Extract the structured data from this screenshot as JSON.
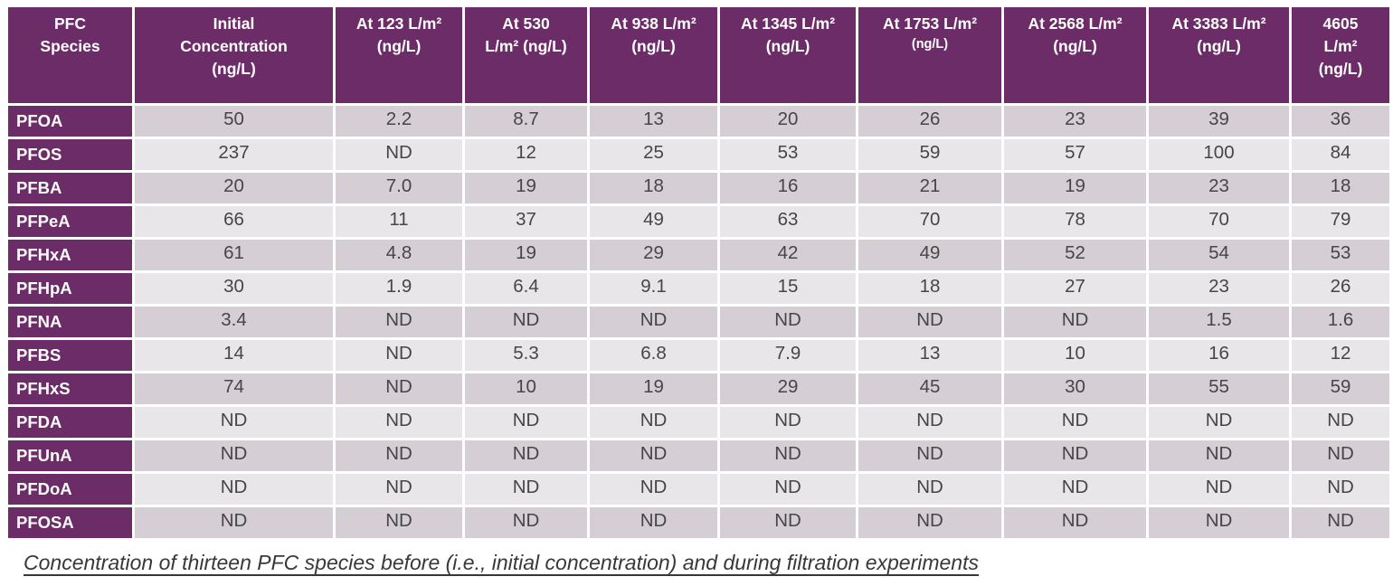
{
  "chart_data": {
    "type": "table",
    "caption": "Concentration of thirteen PFC species before (i.e., initial concentration) and during filtration experiments",
    "columns": [
      "PFC Species",
      "Initial Concentration (ng/L)",
      "At 123 L/m² (ng/L)",
      "At 530 L/m² (ng/L)",
      "At 938 L/m² (ng/L)",
      "At 1345 L/m² (ng/L)",
      "At 1753 L/m² (ng/L)",
      "At 2568 L/m² (ng/L)",
      "At 3383 L/m² (ng/L)",
      "4605 L/m² (ng/L)"
    ],
    "rows": [
      [
        "PFOA",
        "50",
        "2.2",
        "8.7",
        "13",
        "20",
        "26",
        "23",
        "39",
        "36"
      ],
      [
        "PFOS",
        "237",
        "ND",
        "12",
        "25",
        "53",
        "59",
        "57",
        "100",
        "84"
      ],
      [
        "PFBA",
        "20",
        "7.0",
        "19",
        "18",
        "16",
        "21",
        "19",
        "23",
        "18"
      ],
      [
        "PFPeA",
        "66",
        "11",
        "37",
        "49",
        "63",
        "70",
        "78",
        "70",
        "79"
      ],
      [
        "PFHxA",
        "61",
        "4.8",
        "19",
        "29",
        "42",
        "49",
        "52",
        "54",
        "53"
      ],
      [
        "PFHpA",
        "30",
        "1.9",
        "6.4",
        "9.1",
        "15",
        "18",
        "27",
        "23",
        "26"
      ],
      [
        "PFNA",
        "3.4",
        "ND",
        "ND",
        "ND",
        "ND",
        "ND",
        "ND",
        "1.5",
        "1.6"
      ],
      [
        "PFBS",
        "14",
        "ND",
        "5.3",
        "6.8",
        "7.9",
        "13",
        "10",
        "16",
        "12"
      ],
      [
        "PFHxS",
        "74",
        "ND",
        "10",
        "19",
        "29",
        "45",
        "30",
        "55",
        "59"
      ],
      [
        "PFDA",
        "ND",
        "ND",
        "ND",
        "ND",
        "ND",
        "ND",
        "ND",
        "ND",
        "ND"
      ],
      [
        "PFUnA",
        "ND",
        "ND",
        "ND",
        "ND",
        "ND",
        "ND",
        "ND",
        "ND",
        "ND"
      ],
      [
        "PFDoA",
        "ND",
        "ND",
        "ND",
        "ND",
        "ND",
        "ND",
        "ND",
        "ND",
        "ND"
      ],
      [
        "PFOSA",
        "ND",
        "ND",
        "ND",
        "ND",
        "ND",
        "ND",
        "ND",
        "ND",
        "ND"
      ]
    ]
  },
  "header_layout": {
    "lines": [
      [
        "PFC",
        "Species"
      ],
      [
        "Initial",
        "Concentration",
        "(ng/L)"
      ],
      [
        "At 123 L/m²",
        "(ng/L)"
      ],
      [
        "At 530",
        "L/m² (ng/L)"
      ],
      [
        "At 938 L/m²",
        "(ng/L)"
      ],
      [
        "At 1345 L/m²",
        "(ng/L)"
      ],
      [
        "At 1753 L/m²",
        "(ng/L)"
      ],
      [
        "At 2568 L/m²",
        "(ng/L)"
      ],
      [
        "At 3383 L/m²",
        "(ng/L)"
      ],
      [
        "4605",
        "L/m²",
        "(ng/L)"
      ]
    ],
    "small_unit_column": 6
  },
  "colors": {
    "header_bg": "#6C2C68",
    "row_dark_bg": "#D5CED5",
    "row_light_bg": "#E9E6EA",
    "data_text": "#464646",
    "header_text": "#FFFFFF",
    "caption_text": "#383838"
  }
}
